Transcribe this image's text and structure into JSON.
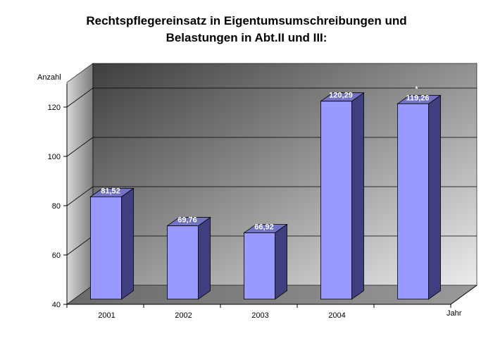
{
  "chart_data": {
    "type": "bar",
    "title_lines": [
      "Rechtspflegereinsatz in Eigentumsumschreibungen und",
      "Belastungen in Abt.II und III:"
    ],
    "ylabel": "Anzahl",
    "xlabel": "Jahr",
    "categories": [
      "2001",
      "2002",
      "2003",
      "2004",
      ""
    ],
    "values": [
      81.52,
      69.76,
      66.92,
      120.29,
      119.26
    ],
    "value_labels": [
      "81,52",
      "69,76",
      "66,92",
      "120,29",
      "119,26"
    ],
    "annotations": [
      {
        "category_index": 4,
        "text": "*"
      }
    ],
    "ylim": [
      40,
      130
    ],
    "yticks": [
      40,
      60,
      80,
      100,
      120
    ],
    "grid": true,
    "three_d": true,
    "colors": {
      "bar_front": "#9999ff",
      "bar_side": "#3f3f7f",
      "bar_top": "#7373c4",
      "bar_outline": "#000000",
      "back_wall_dark": "#4a4a4a",
      "back_wall_light": "#e4e4e4",
      "floor": "#7a7a7a"
    }
  }
}
